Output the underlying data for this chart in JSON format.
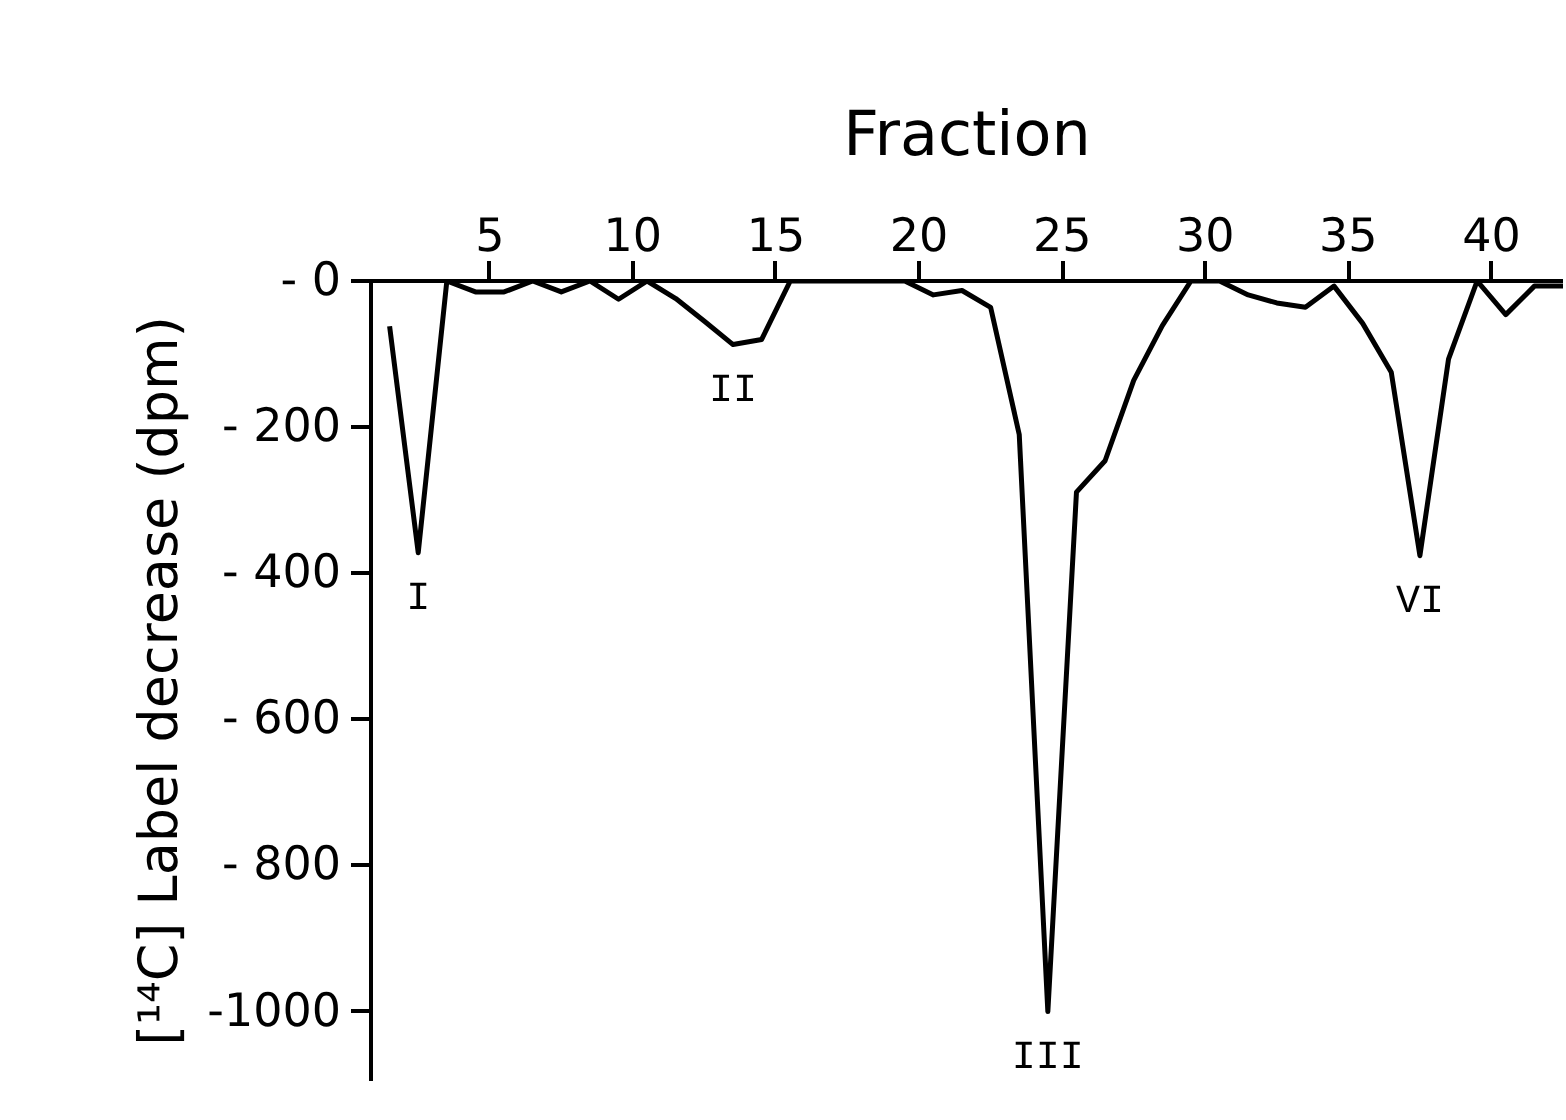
{
  "chart_data": {
    "type": "line",
    "xlabel": "Fraction",
    "ylabel": "[¹⁴C] Label decrease (dpm)",
    "x": [
      1.5,
      2.5,
      3.5,
      4.5,
      5.5,
      6.5,
      7.5,
      8.5,
      9.5,
      10.5,
      11.5,
      12.5,
      13.5,
      14.5,
      15.5,
      16.5,
      17.5,
      18.5,
      19.5,
      20.5,
      21.5,
      22.5,
      23.5,
      24.5,
      25.5,
      26.5,
      27.5,
      28.5,
      29.5,
      30.5,
      31.5,
      32.5,
      33.5,
      34.5,
      35.5,
      36.5,
      37.5,
      38.5,
      39.5,
      40.5,
      41.5,
      42.5
    ],
    "series": [
      {
        "color": "#000000",
        "values": [
          -62,
          -372,
          0,
          -15,
          -15,
          0,
          -15,
          0,
          -25,
          0,
          -24,
          -55,
          -87,
          -80,
          0,
          0,
          0,
          0,
          0,
          -19,
          -13,
          -36,
          -210,
          -1000,
          -289,
          -246,
          -136,
          -61,
          0,
          0,
          -19,
          -30,
          -36,
          -7,
          -58,
          -125,
          -376,
          -107,
          0,
          -46,
          -7,
          -7
        ]
      }
    ],
    "xlim": [
      0.85,
      42.5
    ],
    "xticks": [
      5,
      10,
      15,
      20,
      25,
      30,
      35,
      40
    ],
    "ylim": [
      -1095,
      0
    ],
    "yticks": [
      {
        "value": 0,
        "label": "- 0"
      },
      {
        "value": -200,
        "label": "- 200"
      },
      {
        "value": -400,
        "label": "- 400"
      },
      {
        "value": -600,
        "label": "- 600"
      },
      {
        "value": -800,
        "label": "- 800"
      },
      {
        "value": -1000,
        "label": "-1000"
      }
    ],
    "annotations": [
      {
        "text": "I",
        "x": 2.5,
        "y": -372
      },
      {
        "text": "II",
        "x": 13.5,
        "y": -87
      },
      {
        "text": "III",
        "x": 24.5,
        "y": -1000
      },
      {
        "text": "VI",
        "x": 37.5,
        "y": -376
      }
    ],
    "marker": "none",
    "line_style": "solid"
  }
}
